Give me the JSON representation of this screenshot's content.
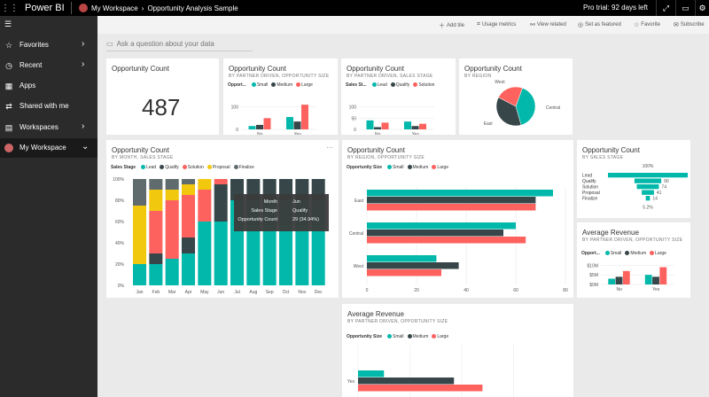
{
  "topbar": {
    "brand": "Power BI",
    "crumbs": [
      "My Workspace",
      "Opportunity Analysis Sample"
    ],
    "trial": "Pro trial: 92 days left"
  },
  "nav": {
    "items": [
      {
        "label": "Favorites",
        "icon": "star-icon",
        "chevron": true
      },
      {
        "label": "Recent",
        "icon": "clock-icon",
        "chevron": true
      },
      {
        "label": "Apps",
        "icon": "apps-icon",
        "chevron": false
      },
      {
        "label": "Shared with me",
        "icon": "shared-icon",
        "chevron": false
      },
      {
        "label": "Workspaces",
        "icon": "workspaces-icon",
        "chevron": true
      },
      {
        "label": "My Workspace",
        "icon": "avatar",
        "chevron": true
      }
    ]
  },
  "actions": {
    "add_tile": "Add tile",
    "usage_metrics": "Usage metrics",
    "view_related": "View related",
    "set_featured": "Set as featured",
    "favorite": "Favorite",
    "subscribe": "Subscribe"
  },
  "qna": {
    "placeholder": "Ask a question about your data"
  },
  "colors": {
    "small": "#01b8aa",
    "medium": "#374649",
    "large": "#fd625e",
    "lead": "#01b8aa",
    "qualify": "#374649",
    "solution": "#fd625e",
    "proposal": "#f2c80f",
    "finalize": "#5f6b6d"
  },
  "tiles": {
    "count": {
      "title": "Opportunity Count",
      "value": "487"
    },
    "partner_size": {
      "title": "Opportunity Count",
      "subtitle": "BY PARTNER DRIVEN, OPPORTUNITY SIZE",
      "legend_title": "Opport...",
      "legend": [
        "Small",
        "Medium",
        "Large"
      ],
      "ticks": [
        "100",
        "0"
      ]
    },
    "region_stage": {
      "title": "Opportunity Count",
      "subtitle": "BY PARTNER DRIVEN, SALES STAGE",
      "legend_title": "Sales St...",
      "legend": [
        "Lead",
        "Qualify",
        "Solution"
      ],
      "ticks": [
        "100",
        "50",
        "0"
      ]
    },
    "region_pie": {
      "title": "Opportunity Count",
      "subtitle": "BY REGION"
    },
    "month_stage": {
      "title": "Opportunity Count",
      "subtitle": "BY MONTH, SALES STAGE",
      "legend_title": "Sales Stage",
      "legend": [
        "Lead",
        "Qualify",
        "Solution",
        "Proposal",
        "Finalize"
      ],
      "tooltip": [
        {
          "k": "Month",
          "v": "Jun"
        },
        {
          "k": "Sales Stage",
          "v": "Qualify"
        },
        {
          "k": "Opportunity Count",
          "v": "29 (34.94%)"
        }
      ]
    },
    "region_size": {
      "title": "Opportunity Count",
      "subtitle": "BY REGION, OPPORTUNITY SIZE",
      "legend_title": "Opportunity Size",
      "legend": [
        "Small",
        "Medium",
        "Large"
      ]
    },
    "funnel": {
      "title": "Opportunity Count",
      "subtitle": "BY SALES STAGE",
      "top_label": "100%",
      "bottom_label": "5.2%"
    },
    "avg_rev": {
      "title": "Average Revenue",
      "subtitle": "BY PARTNER DRIVEN, OPPORTUNITY SIZE",
      "legend_title": "Opport...",
      "legend": [
        "Small",
        "Medium",
        "Large"
      ]
    },
    "avg_rev2": {
      "title": "Average Revenue",
      "subtitle": "BY PARTNER DRIVEN, OPPORTUNITY SIZE",
      "legend_title": "Opportunity Size",
      "legend": [
        "Small",
        "Medium",
        "Large"
      ],
      "ylabel": "Yes"
    }
  },
  "chart_data": [
    {
      "type": "bar",
      "categories": [
        "No",
        "Yes"
      ],
      "series": [
        {
          "name": "Small",
          "values": [
            15,
            55
          ]
        },
        {
          "name": "Medium",
          "values": [
            20,
            35
          ]
        },
        {
          "name": "Large",
          "values": [
            50,
            110
          ]
        }
      ],
      "ylim": [
        0,
        150
      ]
    },
    {
      "type": "bar",
      "categories": [
        "No",
        "Yes"
      ],
      "series": [
        {
          "name": "Lead",
          "values": [
            40,
            35
          ]
        },
        {
          "name": "Qualify",
          "values": [
            10,
            15
          ]
        },
        {
          "name": "Solution",
          "values": [
            30,
            25
          ]
        }
      ],
      "ylim": [
        0,
        150
      ]
    },
    {
      "type": "pie",
      "categories": [
        "Central",
        "East",
        "West"
      ],
      "values": [
        40,
        37,
        23
      ]
    },
    {
      "type": "bar",
      "stacked_percent": true,
      "categories": [
        "Jan",
        "Feb",
        "Mar",
        "Apr",
        "May",
        "Jun",
        "Jul",
        "Aug",
        "Sep",
        "Oct",
        "Nov",
        "Dec"
      ],
      "series": [
        {
          "name": "Lead",
          "values": [
            20,
            20,
            25,
            30,
            60,
            60,
            80,
            80,
            80,
            80,
            80,
            80
          ]
        },
        {
          "name": "Qualify",
          "values": [
            0,
            10,
            0,
            15,
            0,
            35,
            20,
            20,
            20,
            20,
            20,
            20
          ]
        },
        {
          "name": "Solution",
          "values": [
            0,
            40,
            55,
            40,
            30,
            5,
            0,
            0,
            0,
            0,
            0,
            0
          ]
        },
        {
          "name": "Proposal",
          "values": [
            55,
            20,
            10,
            10,
            10,
            0,
            0,
            0,
            0,
            0,
            0,
            0
          ]
        },
        {
          "name": "Finalize",
          "values": [
            25,
            10,
            10,
            5,
            0,
            0,
            0,
            0,
            0,
            0,
            0,
            0
          ]
        }
      ],
      "yticks": [
        "0%",
        "20%",
        "40%",
        "60%",
        "80%",
        "100%"
      ],
      "ylim": [
        0,
        100
      ]
    },
    {
      "type": "bar",
      "orientation": "horizontal",
      "categories": [
        "East",
        "Central",
        "West"
      ],
      "series": [
        {
          "name": "Small",
          "values": [
            75,
            60,
            28
          ]
        },
        {
          "name": "Medium",
          "values": [
            68,
            55,
            37
          ]
        },
        {
          "name": "Large",
          "values": [
            68,
            64,
            30
          ]
        }
      ],
      "xticks": [
        "0",
        "20",
        "40",
        "60",
        "80"
      ],
      "xlim": [
        0,
        80
      ]
    },
    {
      "type": "bar",
      "categories": [
        "Lead",
        "Qualify",
        "Solution",
        "Proposal",
        "Finalize"
      ],
      "values": [
        268,
        90,
        74,
        41,
        14
      ]
    },
    {
      "type": "bar",
      "categories": [
        "No",
        "Yes"
      ],
      "series": [
        {
          "name": "Small",
          "values": [
            3,
            5
          ]
        },
        {
          "name": "Medium",
          "values": [
            4,
            4
          ]
        },
        {
          "name": "Large",
          "values": [
            7,
            9
          ]
        }
      ],
      "yticks": [
        "$10M",
        "$5M",
        "$0M"
      ],
      "ylim": [
        0,
        12
      ]
    },
    {
      "type": "bar",
      "orientation": "horizontal",
      "categories": [
        "Yes"
      ],
      "series": [
        {
          "name": "Small",
          "values": [
            10
          ]
        },
        {
          "name": "Medium",
          "values": [
            37
          ]
        },
        {
          "name": "Large",
          "values": [
            48
          ]
        }
      ],
      "xlim": [
        0,
        80
      ]
    }
  ]
}
